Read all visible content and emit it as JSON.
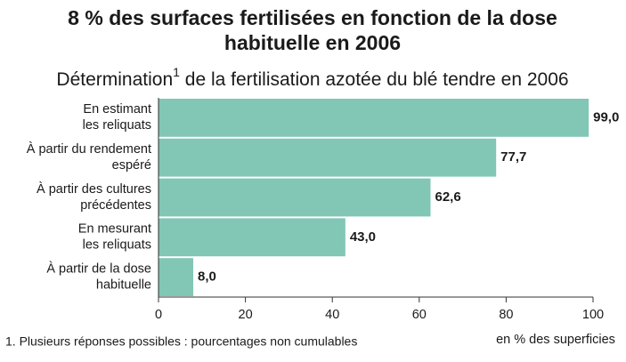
{
  "chart_data": {
    "type": "bar",
    "orientation": "horizontal",
    "title": [
      "8 % des surfaces fertilisées en fonction de la dose",
      "habituelle en 2006"
    ],
    "subtitle": [
      "Détermination",
      "1",
      " de la fertilisation azotée du blé tendre en 2006"
    ],
    "categories": [
      [
        "En estimant",
        "les reliquats"
      ],
      [
        "À partir du rendement",
        "espéré"
      ],
      [
        "À partir des cultures",
        "précédentes"
      ],
      [
        "En mesurant",
        "les reliquats"
      ],
      [
        "À partir de la dose",
        "habituelle"
      ]
    ],
    "values": [
      99.0,
      77.7,
      62.6,
      43.0,
      8.0
    ],
    "value_labels": [
      "99,0",
      "77,7",
      "62,6",
      "43,0",
      "8,0"
    ],
    "color": "#82c6b5",
    "xlim": [
      0,
      100
    ],
    "xticks": [
      0,
      20,
      40,
      60,
      80,
      100
    ],
    "xlabel": "en % des superficies",
    "footnote": "1. Plusieurs réponses possibles : pourcentages non cumulables"
  }
}
